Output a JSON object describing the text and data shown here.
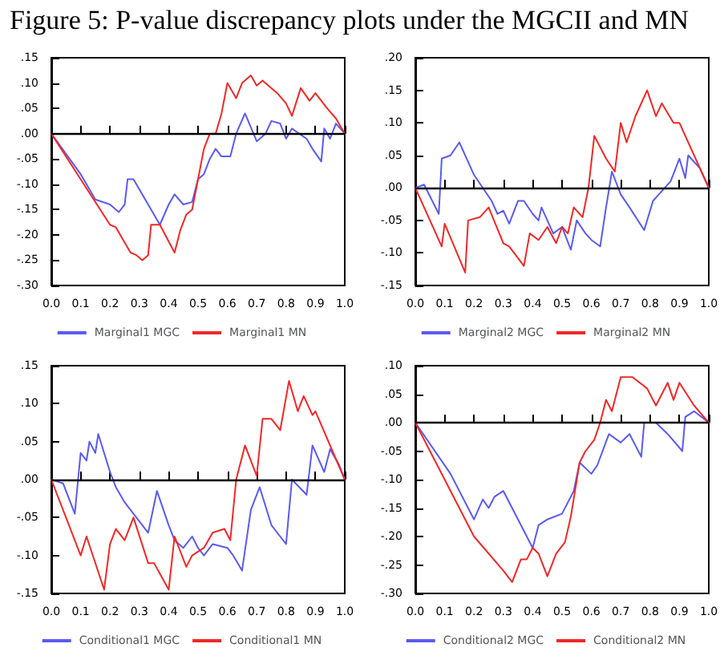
{
  "chart_data": [
    {
      "type": "line",
      "title": "Figure 5: P-value discrepancy plots under the MGCII and MN",
      "xlim": [
        0,
        1
      ],
      "ylim": [
        -0.3,
        0.15
      ],
      "xticks": [
        {
          "value": 0,
          "label": "0.0"
        },
        {
          "value": 0.1,
          "label": "0.1"
        },
        {
          "value": 0.2,
          "label": "0.2"
        },
        {
          "value": 0.3,
          "label": "0.3"
        },
        {
          "value": 0.4,
          "label": "0.4"
        },
        {
          "value": 0.5,
          "label": "0.5"
        },
        {
          "value": 0.6,
          "label": "0.6"
        },
        {
          "value": 0.7,
          "label": "0.7"
        },
        {
          "value": 0.8,
          "label": "0.8"
        },
        {
          "value": 0.9,
          "label": "0.9"
        },
        {
          "value": 1,
          "label": "1.0"
        }
      ],
      "yticks": [
        {
          "value": -0.3,
          "label": "-.30"
        },
        {
          "value": -0.25,
          "label": "-.25"
        },
        {
          "value": -0.2,
          "label": "-.20"
        },
        {
          "value": -0.15,
          "label": "-.15"
        },
        {
          "value": -0.1,
          "label": "-.10"
        },
        {
          "value": -0.05,
          "label": "-.05"
        },
        {
          "value": 0,
          "label": ".00"
        },
        {
          "value": 0.05,
          "label": ".05"
        },
        {
          "value": 0.1,
          "label": ".10"
        },
        {
          "value": 0.15,
          "label": ".15"
        }
      ],
      "grid": false,
      "legend": "bottom",
      "ref_lines": [
        {
          "axis": "y",
          "value": 0,
          "color": "#000000"
        }
      ],
      "series": [
        {
          "name": "Marginal1 MGC",
          "color": "#5a5af0",
          "x": [
            0,
            0.1,
            0.12,
            0.15,
            0.2,
            0.23,
            0.25,
            0.26,
            0.28,
            0.37,
            0.4,
            0.42,
            0.45,
            0.48,
            0.5,
            0.52,
            0.54,
            0.56,
            0.58,
            0.61,
            0.63,
            0.66,
            0.7,
            0.73,
            0.75,
            0.78,
            0.8,
            0.82,
            0.87,
            0.89,
            0.92,
            0.93,
            0.95,
            0.97,
            1
          ],
          "values": [
            0,
            -0.08,
            -0.1,
            -0.13,
            -0.14,
            -0.155,
            -0.14,
            -0.09,
            -0.09,
            -0.18,
            -0.14,
            -0.12,
            -0.14,
            -0.135,
            -0.09,
            -0.08,
            -0.05,
            -0.03,
            -0.045,
            -0.045,
            0,
            0.04,
            -0.015,
            0,
            0.025,
            0.02,
            -0.01,
            0.01,
            -0.01,
            -0.03,
            -0.055,
            0.01,
            -0.01,
            0.02,
            0
          ]
        },
        {
          "name": "Marginal1 MN",
          "color": "#ee2828",
          "x": [
            0,
            0.1,
            0.2,
            0.22,
            0.27,
            0.29,
            0.31,
            0.33,
            0.34,
            0.37,
            0.42,
            0.44,
            0.46,
            0.48,
            0.5,
            0.52,
            0.54,
            0.56,
            0.58,
            0.6,
            0.63,
            0.65,
            0.68,
            0.7,
            0.72,
            0.77,
            0.8,
            0.82,
            0.85,
            0.88,
            0.9,
            0.94,
            0.97,
            1
          ],
          "values": [
            0,
            -0.09,
            -0.18,
            -0.185,
            -0.235,
            -0.24,
            -0.25,
            -0.24,
            -0.18,
            -0.18,
            -0.235,
            -0.19,
            -0.16,
            -0.15,
            -0.09,
            -0.03,
            0,
            0,
            0.04,
            0.1,
            0.07,
            0.1,
            0.115,
            0.095,
            0.105,
            0.08,
            0.06,
            0.035,
            0.09,
            0.065,
            0.08,
            0.05,
            0.03,
            0
          ]
        }
      ]
    },
    {
      "type": "line",
      "xlim": [
        0,
        1
      ],
      "ylim": [
        -0.15,
        0.2
      ],
      "xticks": [
        {
          "value": 0,
          "label": "0.0"
        },
        {
          "value": 0.1,
          "label": "0.1"
        },
        {
          "value": 0.2,
          "label": "0.2"
        },
        {
          "value": 0.3,
          "label": "0.3"
        },
        {
          "value": 0.4,
          "label": "0.4"
        },
        {
          "value": 0.5,
          "label": "0.5"
        },
        {
          "value": 0.6,
          "label": "0.6"
        },
        {
          "value": 0.7,
          "label": "0.7"
        },
        {
          "value": 0.8,
          "label": "0.8"
        },
        {
          "value": 0.9,
          "label": "0.9"
        },
        {
          "value": 1,
          "label": "1.0"
        }
      ],
      "yticks": [
        {
          "value": -0.15,
          "label": "-.15"
        },
        {
          "value": -0.1,
          "label": "-.10"
        },
        {
          "value": -0.05,
          "label": "-.05"
        },
        {
          "value": 0,
          "label": ".00"
        },
        {
          "value": 0.05,
          "label": ".05"
        },
        {
          "value": 0.1,
          "label": ".10"
        },
        {
          "value": 0.15,
          "label": ".15"
        },
        {
          "value": 0.2,
          "label": ".20"
        }
      ],
      "grid": false,
      "legend": "bottom",
      "ref_lines": [
        {
          "axis": "y",
          "value": 0,
          "color": "#000000"
        }
      ],
      "series": [
        {
          "name": "Marginal2 MGC",
          "color": "#5a5af0",
          "x": [
            0,
            0.03,
            0.08,
            0.09,
            0.12,
            0.15,
            0.2,
            0.23,
            0.26,
            0.28,
            0.3,
            0.32,
            0.35,
            0.37,
            0.4,
            0.42,
            0.43,
            0.47,
            0.5,
            0.53,
            0.55,
            0.58,
            0.6,
            0.63,
            0.65,
            0.67,
            0.7,
            0.73,
            0.78,
            0.81,
            0.83,
            0.87,
            0.9,
            0.92,
            0.93,
            0.97,
            1
          ],
          "values": [
            0,
            0.005,
            -0.04,
            0.045,
            0.05,
            0.07,
            0.02,
            0,
            -0.02,
            -0.04,
            -0.035,
            -0.055,
            -0.02,
            -0.02,
            -0.04,
            -0.05,
            -0.03,
            -0.07,
            -0.06,
            -0.095,
            -0.05,
            -0.07,
            -0.08,
            -0.09,
            -0.03,
            0.025,
            -0.01,
            -0.03,
            -0.065,
            -0.02,
            -0.01,
            0.01,
            0.045,
            0.015,
            0.05,
            0.03,
            0
          ]
        },
        {
          "name": "Marginal2 MN",
          "color": "#ee2828",
          "x": [
            0,
            0.09,
            0.1,
            0.17,
            0.18,
            0.22,
            0.25,
            0.3,
            0.32,
            0.37,
            0.39,
            0.42,
            0.45,
            0.48,
            0.5,
            0.52,
            0.54,
            0.57,
            0.59,
            0.61,
            0.65,
            0.68,
            0.7,
            0.72,
            0.75,
            0.79,
            0.82,
            0.84,
            0.88,
            0.9,
            1
          ],
          "values": [
            0,
            -0.09,
            -0.055,
            -0.13,
            -0.05,
            -0.045,
            -0.03,
            -0.085,
            -0.09,
            -0.12,
            -0.07,
            -0.08,
            -0.06,
            -0.085,
            -0.06,
            -0.07,
            -0.03,
            -0.045,
            0,
            0.08,
            0.045,
            0.025,
            0.1,
            0.07,
            0.11,
            0.15,
            0.11,
            0.13,
            0.1,
            0.1,
            0
          ]
        }
      ]
    },
    {
      "type": "line",
      "xlim": [
        0,
        1
      ],
      "ylim": [
        -0.15,
        0.15
      ],
      "xticks": [
        {
          "value": 0,
          "label": "0.0"
        },
        {
          "value": 0.1,
          "label": "0.1"
        },
        {
          "value": 0.2,
          "label": "0.2"
        },
        {
          "value": 0.3,
          "label": "0.3"
        },
        {
          "value": 0.4,
          "label": "0.4"
        },
        {
          "value": 0.5,
          "label": "0.5"
        },
        {
          "value": 0.6,
          "label": "0.6"
        },
        {
          "value": 0.7,
          "label": "0.7"
        },
        {
          "value": 0.8,
          "label": "0.8"
        },
        {
          "value": 0.9,
          "label": "0.9"
        },
        {
          "value": 1,
          "label": "1.0"
        }
      ],
      "yticks": [
        {
          "value": -0.15,
          "label": "-.15"
        },
        {
          "value": -0.1,
          "label": "-.10"
        },
        {
          "value": -0.05,
          "label": "-.05"
        },
        {
          "value": 0,
          "label": ".00"
        },
        {
          "value": 0.05,
          "label": ".05"
        },
        {
          "value": 0.1,
          "label": ".10"
        },
        {
          "value": 0.15,
          "label": ".15"
        }
      ],
      "grid": false,
      "legend": "bottom",
      "ref_lines": [
        {
          "axis": "y",
          "value": 0,
          "color": "#000000"
        }
      ],
      "series": [
        {
          "name": "Conditional1 MGC",
          "color": "#5a5af0",
          "x": [
            0,
            0.04,
            0.08,
            0.1,
            0.12,
            0.13,
            0.15,
            0.16,
            0.2,
            0.22,
            0.25,
            0.28,
            0.3,
            0.33,
            0.36,
            0.4,
            0.42,
            0.45,
            0.48,
            0.5,
            0.52,
            0.55,
            0.6,
            0.62,
            0.65,
            0.68,
            0.71,
            0.75,
            0.78,
            0.8,
            0.82,
            0.87,
            0.89,
            0.93,
            0.95,
            0.98,
            1
          ],
          "values": [
            0,
            -0.005,
            -0.045,
            0.035,
            0.025,
            0.05,
            0.035,
            0.06,
            0.01,
            -0.01,
            -0.03,
            -0.045,
            -0.055,
            -0.07,
            -0.015,
            -0.06,
            -0.08,
            -0.09,
            -0.075,
            -0.09,
            -0.1,
            -0.085,
            -0.09,
            -0.1,
            -0.12,
            -0.04,
            -0.01,
            -0.06,
            -0.075,
            -0.085,
            0,
            -0.02,
            0.045,
            0.01,
            0.04,
            0.02,
            0
          ]
        },
        {
          "name": "Conditional1 MN",
          "color": "#ee2828",
          "x": [
            0,
            0.1,
            0.12,
            0.18,
            0.2,
            0.22,
            0.25,
            0.28,
            0.33,
            0.35,
            0.4,
            0.42,
            0.46,
            0.48,
            0.52,
            0.55,
            0.59,
            0.61,
            0.63,
            0.66,
            0.7,
            0.72,
            0.75,
            0.78,
            0.81,
            0.84,
            0.86,
            0.89,
            0.9,
            1
          ],
          "values": [
            0,
            -0.1,
            -0.075,
            -0.145,
            -0.085,
            -0.065,
            -0.08,
            -0.05,
            -0.11,
            -0.11,
            -0.145,
            -0.075,
            -0.115,
            -0.1,
            -0.09,
            -0.07,
            -0.065,
            -0.08,
            0,
            0.045,
            0.005,
            0.08,
            0.08,
            0.065,
            0.13,
            0.09,
            0.11,
            0.085,
            0.09,
            0
          ]
        }
      ]
    },
    {
      "type": "line",
      "xlim": [
        0,
        1
      ],
      "ylim": [
        -0.3,
        0.1
      ],
      "xticks": [
        {
          "value": 0,
          "label": "0.0"
        },
        {
          "value": 0.1,
          "label": "0.1"
        },
        {
          "value": 0.2,
          "label": "0.2"
        },
        {
          "value": 0.3,
          "label": "0.3"
        },
        {
          "value": 0.4,
          "label": "0.4"
        },
        {
          "value": 0.5,
          "label": "0.5"
        },
        {
          "value": 0.6,
          "label": "0.6"
        },
        {
          "value": 0.7,
          "label": "0.7"
        },
        {
          "value": 0.8,
          "label": "0.8"
        },
        {
          "value": 0.9,
          "label": "0.9"
        },
        {
          "value": 1,
          "label": "1.0"
        }
      ],
      "yticks": [
        {
          "value": -0.3,
          "label": "-.30"
        },
        {
          "value": -0.25,
          "label": "-.25"
        },
        {
          "value": -0.2,
          "label": "-.20"
        },
        {
          "value": -0.15,
          "label": "-.15"
        },
        {
          "value": -0.1,
          "label": "-.10"
        },
        {
          "value": -0.05,
          "label": "-.05"
        },
        {
          "value": 0,
          "label": ".00"
        },
        {
          "value": 0.05,
          "label": ".05"
        },
        {
          "value": 0.1,
          "label": ".10"
        }
      ],
      "grid": false,
      "legend": "bottom",
      "ref_lines": [
        {
          "axis": "y",
          "value": 0,
          "color": "#000000"
        }
      ],
      "series": [
        {
          "name": "Conditional2 MGC",
          "color": "#5a5af0",
          "x": [
            0,
            0.12,
            0.2,
            0.23,
            0.25,
            0.27,
            0.3,
            0.4,
            0.42,
            0.45,
            0.5,
            0.52,
            0.54,
            0.56,
            0.6,
            0.62,
            0.66,
            0.7,
            0.73,
            0.77,
            0.78,
            0.82,
            0.86,
            0.91,
            0.92,
            0.95,
            1
          ],
          "values": [
            0,
            -0.09,
            -0.17,
            -0.135,
            -0.15,
            -0.13,
            -0.12,
            -0.22,
            -0.18,
            -0.17,
            -0.16,
            -0.14,
            -0.12,
            -0.07,
            -0.09,
            -0.075,
            -0.02,
            -0.035,
            -0.02,
            -0.06,
            0,
            0,
            -0.02,
            -0.05,
            0.01,
            0.02,
            0
          ]
        },
        {
          "name": "Conditional2 MN",
          "color": "#ee2828",
          "x": [
            0,
            0.1,
            0.2,
            0.3,
            0.33,
            0.36,
            0.38,
            0.4,
            0.42,
            0.45,
            0.48,
            0.51,
            0.53,
            0.56,
            0.58,
            0.61,
            0.63,
            0.65,
            0.67,
            0.7,
            0.74,
            0.79,
            0.82,
            0.86,
            0.88,
            0.9,
            0.95,
            1
          ],
          "values": [
            0,
            -0.1,
            -0.2,
            -0.26,
            -0.28,
            -0.24,
            -0.24,
            -0.22,
            -0.23,
            -0.27,
            -0.23,
            -0.21,
            -0.165,
            -0.07,
            -0.05,
            -0.03,
            0,
            0.04,
            0.02,
            0.08,
            0.08,
            0.06,
            0.03,
            0.07,
            0.04,
            0.07,
            0.03,
            0
          ]
        }
      ]
    }
  ]
}
